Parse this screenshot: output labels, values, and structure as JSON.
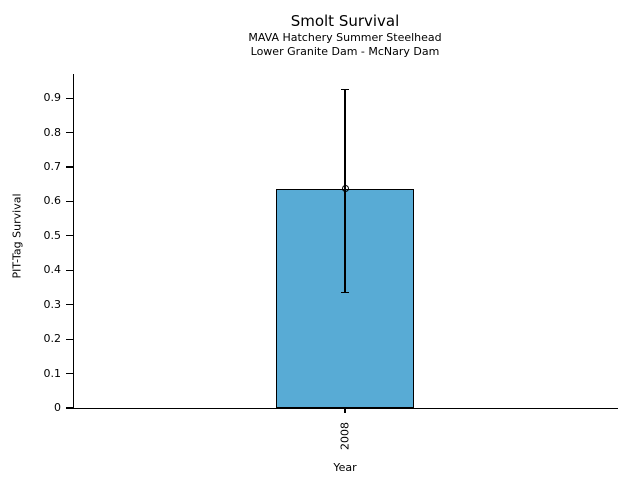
{
  "chart_data": {
    "type": "bar",
    "title": "Smolt Survival",
    "subtitle_lines": [
      "MAVA Hatchery Summer Steelhead",
      "Lower Granite Dam - McNary Dam"
    ],
    "xlabel": "Year",
    "ylabel": "PIT-Tag Survival",
    "categories": [
      "2008"
    ],
    "values": [
      0.637
    ],
    "error_low": [
      0.335
    ],
    "error_high": [
      0.925
    ],
    "yticks": [
      0,
      0.1,
      0.2,
      0.3,
      0.4,
      0.5,
      0.6,
      0.7,
      0.8,
      0.9
    ],
    "ytick_labels": [
      "0",
      "0.1",
      "0.2",
      "0.3",
      "0.4",
      "0.5",
      "0.6",
      "0.7",
      "0.8",
      "0.9"
    ],
    "ylim": [
      0,
      0.97
    ],
    "grid": false,
    "legend": "none",
    "marker": "open-circle",
    "colors": {
      "bar_fill": "#58ABD5",
      "bar_edge": "#000000",
      "error_bar": "#000000",
      "text": "#000000",
      "background": "#ffffff"
    }
  }
}
